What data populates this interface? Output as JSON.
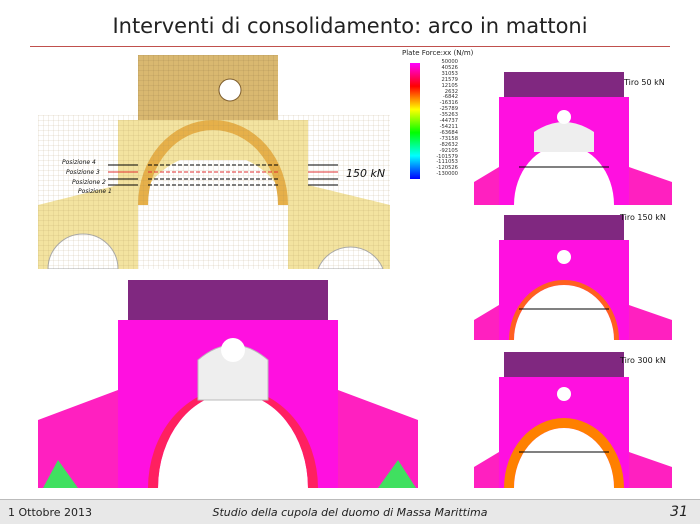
{
  "title": "Interventi di consolidamento: arco in mattoni",
  "legend": {
    "title": "Plate Force:xx (N/m)",
    "values": [
      "50000",
      "40526",
      "31053",
      "21579",
      "12105",
      "2632",
      "-6842",
      "-16316",
      "-25789",
      "-35263",
      "-44737",
      "-54211",
      "-63684",
      "-73158",
      "-82632",
      "-92105",
      "-101579",
      "-111053",
      "-120526",
      "-130000"
    ]
  },
  "positions": [
    "Posizione 4",
    "Posizione 3",
    "Posizione 2",
    "Posizione 1"
  ],
  "load_label": "150 kN",
  "cases": [
    "Tiro 50 kN",
    "Tiro 150 kN",
    "Tiro 300 kN"
  ],
  "colors": {
    "accent_rule": "#c0504d",
    "model_yellow": "#f3e3a0",
    "stress_magenta": "#ff00ff",
    "highlight_line": "#e03030"
  },
  "footer": {
    "date": "1 Ottobre 2013",
    "center": "Studio della cupola del duomo di Massa Marittima",
    "page": "31"
  }
}
